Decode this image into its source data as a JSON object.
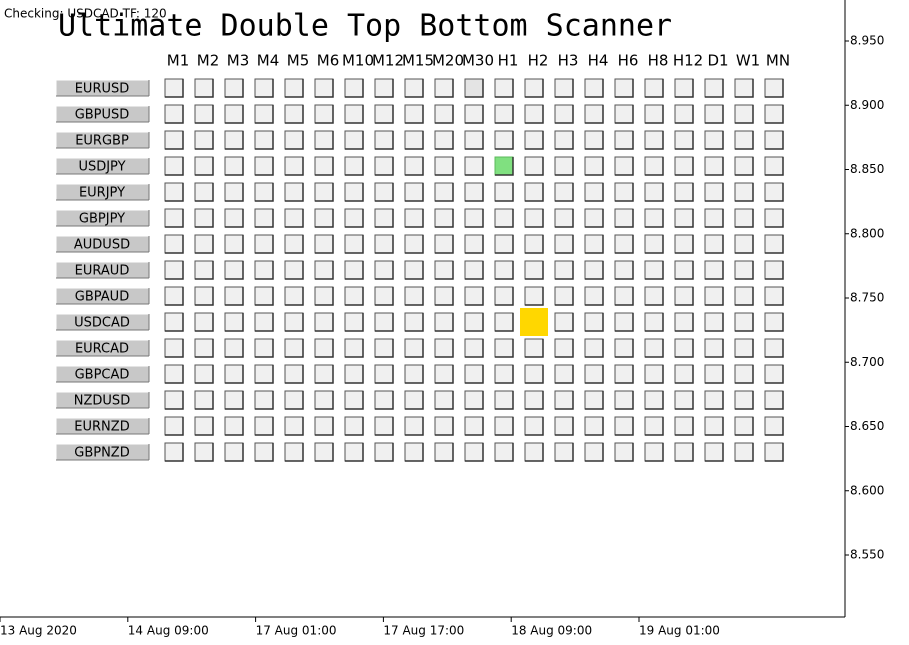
{
  "status": "Checking: USDCAD TF: 120",
  "title": "Ultimate Double Top Bottom Scanner",
  "timeframes": [
    "M1",
    "M2",
    "M3",
    "M4",
    "M5",
    "M6",
    "M10",
    "M12",
    "M15",
    "M20",
    "M30",
    "H1",
    "H2",
    "H3",
    "H4",
    "H6",
    "H8",
    "H12",
    "D1",
    "W1",
    "MN"
  ],
  "symbols": [
    "EURUSD",
    "GBPUSD",
    "EURGBP",
    "USDJPY",
    "EURJPY",
    "GBPJPY",
    "AUDUSD",
    "EURAUD",
    "GBPAUD",
    "USDCAD",
    "EURCAD",
    "GBPCAD",
    "NZDUSD",
    "EURNZD",
    "GBPNZD"
  ],
  "price_axis": [
    "8.950",
    "8.900",
    "8.850",
    "8.800",
    "8.750",
    "8.700",
    "8.650",
    "8.600",
    "8.550"
  ],
  "time_axis": [
    "13 Aug 2020",
    "14 Aug 09:00",
    "17 Aug 01:00",
    "17 Aug 17:00",
    "18 Aug 09:00",
    "19 Aug 01:00"
  ]
}
